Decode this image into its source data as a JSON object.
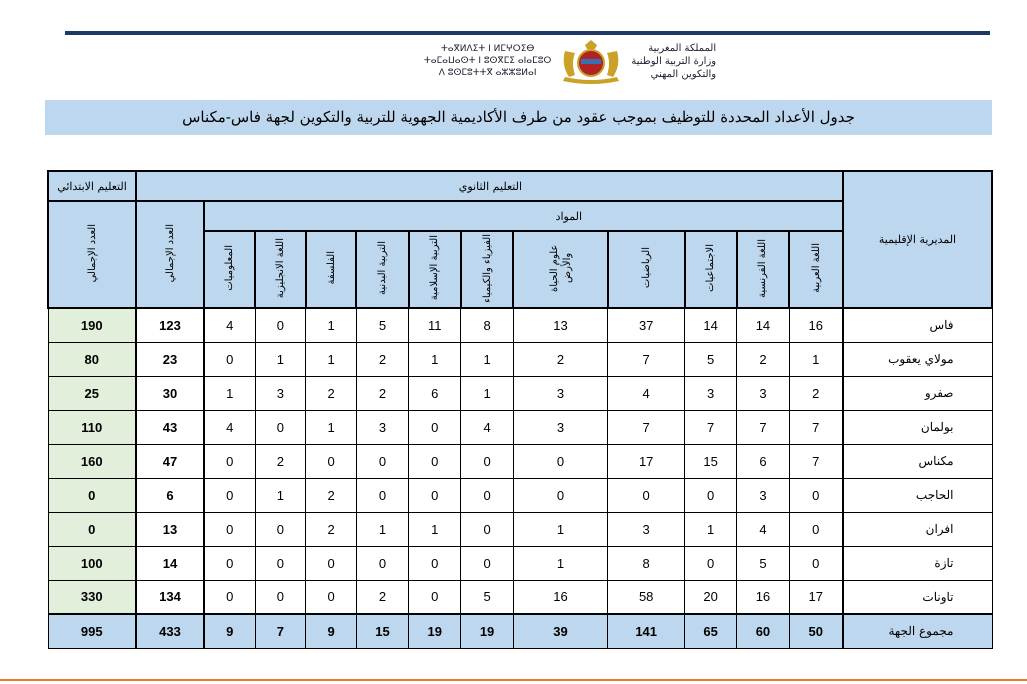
{
  "header": {
    "tifinagh": [
      "ⵜⴰⴳⵍⴷⵉⵜ ⵏ ⵍⵎⵖⵔⵉⴱ",
      "ⵜⴰⵎⴰⵡⴰⵙⵜ ⵏ ⵓⵙⴳⵎⵉ ⴰⵏⴰⵎⵓⵔ",
      "ⴷ ⵓⵙⵎⵓⵜⵜⴳ ⴰⵣⵣⵓⵍⴰⵏ"
    ],
    "arabic": [
      "المملكة المغربية",
      "وزارة التربية الوطنية",
      "والتكوين المهني"
    ],
    "emblem": "moroccan-coat-of-arms"
  },
  "title": "جدول الأعداد المحددة للتوظيف بموجب عقود من طرف الأكاديمية الجهوية للتربية والتكوين لجهة فاس-مكناس",
  "table": {
    "col_directorate": "المديرية الإقليمية",
    "secondary": "التعليم الثانوي",
    "primary": "التعليم الابتدائي",
    "subjects_label": "المواد",
    "subjects": [
      "اللغة العربية",
      "اللغة الفرنسية",
      "الاجتماعيات",
      "الرياضيات",
      "علوم الحياة والأرض",
      "الفيزياء والكيمياء",
      "التربية الإسلامية",
      "التربية البدنية",
      "الفلسفة",
      "اللغة الانجليزية",
      "المعلوميات"
    ],
    "sec_total": "العدد الإجمالي",
    "prim_total": "العدد الإجمالي",
    "rows": [
      {
        "name": "فاس",
        "values": [
          16,
          14,
          14,
          37,
          13,
          8,
          11,
          5,
          1,
          0,
          4
        ],
        "sec_total": 123,
        "prim_total": 190
      },
      {
        "name": "مولاي يعقوب",
        "values": [
          1,
          2,
          5,
          7,
          2,
          1,
          1,
          2,
          1,
          1,
          0
        ],
        "sec_total": 23,
        "prim_total": 80
      },
      {
        "name": "صفرو",
        "values": [
          2,
          3,
          3,
          4,
          3,
          1,
          6,
          2,
          2,
          3,
          1
        ],
        "sec_total": 30,
        "prim_total": 25
      },
      {
        "name": "بولمان",
        "values": [
          7,
          7,
          7,
          7,
          3,
          4,
          0,
          3,
          1,
          0,
          4
        ],
        "sec_total": 43,
        "prim_total": 110
      },
      {
        "name": "مكناس",
        "values": [
          7,
          6,
          15,
          17,
          0,
          0,
          0,
          0,
          0,
          2,
          0
        ],
        "sec_total": 47,
        "prim_total": 160
      },
      {
        "name": "الحاجب",
        "values": [
          0,
          3,
          0,
          0,
          0,
          0,
          0,
          0,
          2,
          1,
          0
        ],
        "sec_total": 6,
        "prim_total": 0
      },
      {
        "name": "افران",
        "values": [
          0,
          4,
          1,
          3,
          1,
          0,
          1,
          1,
          2,
          0,
          0
        ],
        "sec_total": 13,
        "prim_total": 0
      },
      {
        "name": "تازة",
        "values": [
          0,
          5,
          0,
          8,
          1,
          0,
          0,
          0,
          0,
          0,
          0
        ],
        "sec_total": 14,
        "prim_total": 100
      },
      {
        "name": "تاونات",
        "values": [
          17,
          16,
          20,
          58,
          16,
          5,
          0,
          2,
          0,
          0,
          0
        ],
        "sec_total": 134,
        "prim_total": 330
      }
    ],
    "total": {
      "name": "مجموع الجهة",
      "values": [
        50,
        60,
        65,
        141,
        39,
        19,
        19,
        15,
        9,
        7,
        9
      ],
      "sec_total": 433,
      "prim_total": 995
    }
  },
  "colors": {
    "header_bg": "#bdd7ee",
    "primary_col_bg": "#e2efda",
    "top_rule": "#1f3864",
    "bottom_rule": "#ed7d31"
  }
}
